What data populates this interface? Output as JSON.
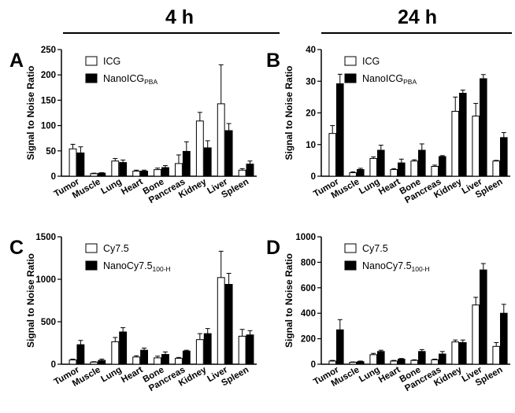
{
  "header": {
    "left_title": "4 h",
    "right_title": "24 h"
  },
  "colors": {
    "bar_a": "#ffffff",
    "bar_b": "#000000",
    "stroke": "#000000"
  },
  "chart_data": [
    {
      "type": "bar",
      "panel_label": "A",
      "ylabel": "Signal to Noise Ratio",
      "ylim": [
        0,
        250
      ],
      "yticks": [
        0,
        50,
        100,
        150,
        200,
        250
      ],
      "categories": [
        "Tumor",
        "Muscle",
        "Lung",
        "Heart",
        "Bone",
        "Pancreas",
        "Kidney",
        "Liver",
        "Spleen"
      ],
      "legend": [
        {
          "main": "ICG",
          "sub": ""
        },
        {
          "main": "NanoICG",
          "sub": "PBA"
        }
      ],
      "series": [
        {
          "name": "ICG",
          "values": [
            54,
            5,
            30,
            10,
            13,
            25,
            109,
            143,
            12
          ],
          "errors": [
            9,
            1,
            5,
            2,
            3,
            17,
            17,
            77,
            3
          ]
        },
        {
          "name": "NanoICG PBA",
          "values": [
            46,
            6,
            27,
            10,
            17,
            49,
            56,
            90,
            24
          ],
          "errors": [
            12,
            1,
            5,
            2,
            4,
            19,
            14,
            14,
            6
          ]
        }
      ]
    },
    {
      "type": "bar",
      "panel_label": "B",
      "ylabel": "Signal to Noise Ratio",
      "ylim": [
        0,
        40
      ],
      "yticks": [
        0,
        10,
        20,
        30,
        40
      ],
      "categories": [
        "Tumor",
        "Muscle",
        "Lung",
        "Heart",
        "Bone",
        "Pancreas",
        "Kidney",
        "Liver",
        "Spleen"
      ],
      "legend": [
        {
          "main": "ICG",
          "sub": ""
        },
        {
          "main": "NanoICG",
          "sub": "PBA"
        }
      ],
      "series": [
        {
          "name": "ICG",
          "values": [
            13.5,
            1.1,
            5.6,
            2.1,
            4.8,
            3.1,
            20.5,
            19,
            4.8
          ],
          "errors": [
            2.5,
            0.3,
            0.5,
            0.3,
            0.4,
            0.4,
            4.5,
            4,
            0.2
          ]
        },
        {
          "name": "NanoICG PBA",
          "values": [
            29.2,
            2.1,
            8.2,
            4.2,
            8.2,
            6.2,
            26.2,
            30.8,
            12.2
          ],
          "errors": [
            3,
            0.4,
            1.6,
            1.2,
            2,
            0.3,
            1,
            1.3,
            1.6
          ]
        }
      ]
    },
    {
      "type": "bar",
      "panel_label": "C",
      "ylabel": "Signal to Noise Ratio",
      "ylim": [
        0,
        1500
      ],
      "yticks": [
        0,
        500,
        1000,
        1500
      ],
      "categories": [
        "Tumor",
        "Muscle",
        "Lung",
        "Heart",
        "Bone",
        "Pancreas",
        "Kidney",
        "Liver",
        "Spleen"
      ],
      "legend": [
        {
          "main": "Cy7.5",
          "sub": ""
        },
        {
          "main": "NanoCy7.5",
          "sub": "100-H"
        }
      ],
      "series": [
        {
          "name": "Cy7.5",
          "values": [
            50,
            25,
            265,
            85,
            75,
            70,
            290,
            1020,
            330
          ],
          "errors": [
            10,
            5,
            50,
            15,
            20,
            10,
            70,
            310,
            80
          ]
        },
        {
          "name": "NanoCy7.5 100-H",
          "values": [
            230,
            45,
            380,
            165,
            115,
            155,
            360,
            940,
            345
          ],
          "errors": [
            50,
            15,
            50,
            25,
            30,
            10,
            60,
            130,
            50
          ]
        }
      ]
    },
    {
      "type": "bar",
      "panel_label": "D",
      "ylabel": "Signal to Noise Ratio",
      "ylim": [
        0,
        1000
      ],
      "yticks": [
        0,
        200,
        400,
        600,
        800,
        1000
      ],
      "categories": [
        "Tumor",
        "Muscle",
        "Lung",
        "Heart",
        "Bone",
        "Pancreas",
        "Kidney",
        "Liver",
        "Spleen"
      ],
      "legend": [
        {
          "main": "Cy7.5",
          "sub": ""
        },
        {
          "main": "NanoCy7.5",
          "sub": "100-H"
        }
      ],
      "series": [
        {
          "name": "Cy7.5",
          "values": [
            25,
            15,
            75,
            25,
            30,
            35,
            175,
            465,
            140
          ],
          "errors": [
            5,
            3,
            10,
            5,
            5,
            5,
            15,
            60,
            30
          ]
        },
        {
          "name": "NanoCy7.5 100-H",
          "values": [
            270,
            20,
            100,
            40,
            100,
            80,
            170,
            740,
            400
          ],
          "errors": [
            80,
            5,
            10,
            5,
            15,
            20,
            20,
            50,
            70
          ]
        }
      ]
    }
  ]
}
